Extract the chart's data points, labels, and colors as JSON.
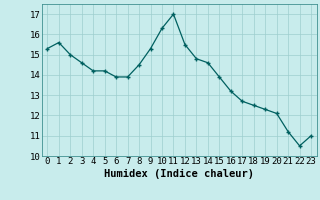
{
  "x": [
    0,
    1,
    2,
    3,
    4,
    5,
    6,
    7,
    8,
    9,
    10,
    11,
    12,
    13,
    14,
    15,
    16,
    17,
    18,
    19,
    20,
    21,
    22,
    23
  ],
  "y": [
    15.3,
    15.6,
    15.0,
    14.6,
    14.2,
    14.2,
    13.9,
    13.9,
    14.5,
    15.3,
    16.3,
    17.0,
    15.5,
    14.8,
    14.6,
    13.9,
    13.2,
    12.7,
    12.5,
    12.3,
    12.1,
    11.2,
    10.5,
    11.0
  ],
  "xlim": [
    -0.5,
    23.5
  ],
  "ylim": [
    10,
    17.5
  ],
  "yticks": [
    10,
    11,
    12,
    13,
    14,
    15,
    16,
    17
  ],
  "xticks": [
    0,
    1,
    2,
    3,
    4,
    5,
    6,
    7,
    8,
    9,
    10,
    11,
    12,
    13,
    14,
    15,
    16,
    17,
    18,
    19,
    20,
    21,
    22,
    23
  ],
  "xlabel": "Humidex (Indice chaleur)",
  "line_color": "#006060",
  "marker_color": "#006060",
  "bg_color": "#c8ecec",
  "grid_color": "#9ecece",
  "tick_fontsize": 6.5,
  "label_fontsize": 7.5
}
